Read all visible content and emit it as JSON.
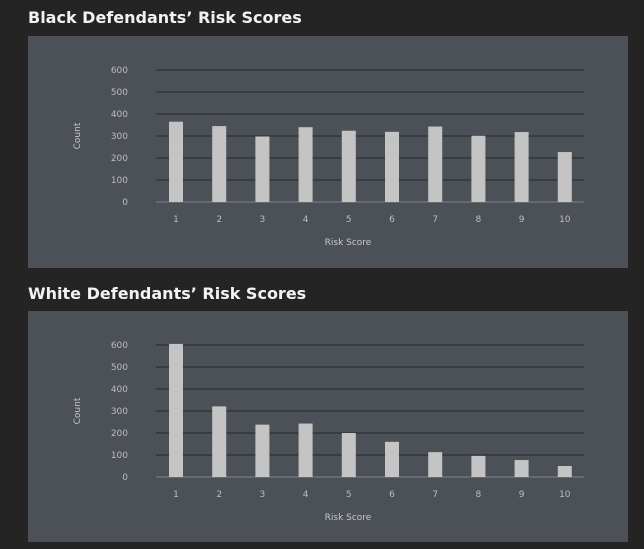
{
  "colors": {
    "background": "#242424",
    "panel": "#4b5157",
    "bar": "#c4c4c4",
    "grid": "#26292c",
    "text": "#f2f2f2"
  },
  "chart_data": [
    {
      "type": "bar",
      "title": "Black Defendants’ Risk Scores",
      "xlabel": "Risk Score",
      "ylabel": "Count",
      "ylim": [
        0,
        600
      ],
      "yticks": [
        "0",
        "100",
        "200",
        "300",
        "400",
        "500",
        "600"
      ],
      "grid": true,
      "categories": [
        "1",
        "2",
        "3",
        "4",
        "5",
        "6",
        "7",
        "8",
        "9",
        "10"
      ],
      "values": [
        365,
        345,
        298,
        340,
        324,
        319,
        343,
        301,
        318,
        227
      ]
    },
    {
      "type": "bar",
      "title": "White Defendants’ Risk Scores",
      "xlabel": "Risk Score",
      "ylabel": "Count",
      "ylim": [
        0,
        600
      ],
      "yticks": [
        "0",
        "100",
        "200",
        "300",
        "400",
        "500",
        "600"
      ],
      "grid": true,
      "categories": [
        "1",
        "2",
        "3",
        "4",
        "5",
        "6",
        "7",
        "8",
        "9",
        "10"
      ],
      "values": [
        605,
        321,
        238,
        243,
        200,
        160,
        113,
        96,
        77,
        50
      ]
    }
  ]
}
